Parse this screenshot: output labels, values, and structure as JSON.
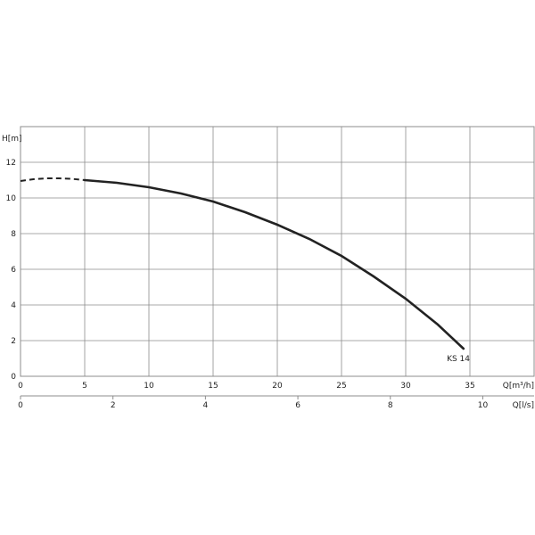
{
  "chart_data": {
    "type": "line",
    "title": "",
    "ylabel": "H[m]",
    "xlabel": "Q[m³/h]",
    "x2label": "Q[l/s]",
    "xlim": [
      0,
      40
    ],
    "ylim": [
      0,
      14
    ],
    "x2lim": [
      0,
      11.11
    ],
    "xticks": [
      0,
      5,
      10,
      15,
      20,
      25,
      30,
      35
    ],
    "x2ticks": [
      0,
      2,
      4,
      6,
      8,
      10
    ],
    "yticks": [
      0,
      2,
      4,
      6,
      8,
      10,
      12
    ],
    "grid": true,
    "line_color": "#222222",
    "grid_color": "#8c8c8c",
    "series": [
      {
        "name": "KS 14",
        "dashed_x": [
          0,
          1,
          2,
          3,
          4,
          5
        ],
        "dashed_y": [
          10.95,
          11.05,
          11.1,
          11.1,
          11.07,
          11.0
        ],
        "x": [
          5,
          7.5,
          10,
          12.5,
          15,
          17.5,
          20,
          22.5,
          25,
          27.5,
          30,
          32.5,
          34.5
        ],
        "y": [
          11.0,
          10.85,
          10.6,
          10.25,
          9.8,
          9.2,
          8.5,
          7.7,
          6.75,
          5.6,
          4.35,
          2.9,
          1.55
        ]
      }
    ]
  }
}
